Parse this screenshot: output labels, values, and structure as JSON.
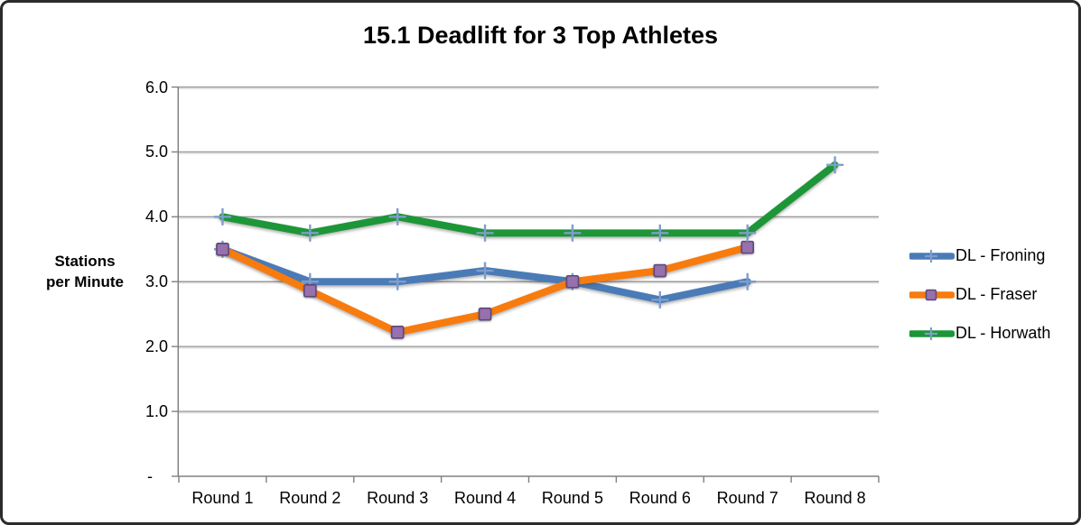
{
  "chart_data": {
    "type": "line",
    "title": "15.1 Deadlift for 3 Top Athletes",
    "ylabel": "Stations per Minute",
    "ylabel_lines": [
      "Stations",
      "per Minute"
    ],
    "xlabel": "",
    "categories": [
      "Round 1",
      "Round 2",
      "Round 3",
      "Round 4",
      "Round 5",
      "Round 6",
      "Round 7",
      "Round 8"
    ],
    "series": [
      {
        "name": "DL - Froning",
        "color": "#4A7BB7",
        "marker": "cross",
        "values": [
          3.5,
          3.0,
          3.0,
          3.17,
          3.0,
          2.72,
          3.0,
          null
        ]
      },
      {
        "name": "DL - Fraser",
        "color": "#F87B0E",
        "marker": "square",
        "values": [
          3.5,
          2.86,
          2.22,
          2.5,
          3.0,
          3.17,
          3.53,
          null
        ]
      },
      {
        "name": "DL - Horwath",
        "color": "#1D9638",
        "marker": "cross",
        "values": [
          4.0,
          3.75,
          4.0,
          3.75,
          3.75,
          3.75,
          3.75,
          4.8
        ]
      }
    ],
    "y_ticks": [
      {
        "value": 6,
        "label": "6.0"
      },
      {
        "value": 5,
        "label": "5.0"
      },
      {
        "value": 4,
        "label": "4.0"
      },
      {
        "value": 3,
        "label": "3.0"
      },
      {
        "value": 2,
        "label": "2.0"
      },
      {
        "value": 1,
        "label": "1.0"
      },
      {
        "value": 0,
        "label": "-"
      }
    ],
    "ylim": [
      0,
      6
    ],
    "grid": true,
    "legend_position": "right",
    "colors": {
      "cross_marker": "#7F9DCB",
      "square_marker_fill": "#9770AE",
      "square_marker_border": "#5F4878",
      "gridline": "#9B9B9B",
      "gridline_shadow": "#DCDCDC",
      "axis": "#808080",
      "text": "#000000"
    }
  }
}
